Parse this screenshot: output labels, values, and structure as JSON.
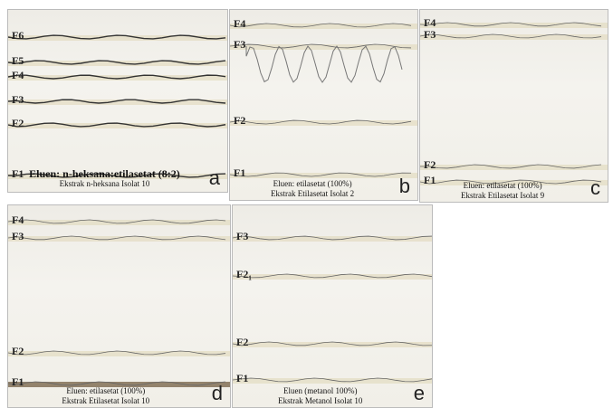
{
  "panels": [
    {
      "fractions": [
        "F6",
        "F5",
        "F4",
        "F3",
        "F2",
        "F1"
      ],
      "caption": [
        "Eluen: n-heksana:etilasetat (8:2)",
        "Ekstrak n-heksana Isolat 10"
      ],
      "letter": "a"
    },
    {
      "fractions": [
        "F4",
        "F3",
        "F2",
        "F1"
      ],
      "caption": [
        "Eluen: etilasetat (100%)",
        "Ekstrak Etilasetat Isolat 2"
      ],
      "letter": "b"
    },
    {
      "fractions": [
        "F4",
        "F3",
        "F2",
        "F1"
      ],
      "caption": [
        "Eluen: etilasetat (100%)",
        "Ekstrak Etilasetat Isolat 9"
      ],
      "letter": "c"
    },
    {
      "fractions": [
        "F4",
        "F3",
        "F2",
        "F1"
      ],
      "caption": [
        "Eluen: etilasetat (100%)",
        "Ekstrak Etilasetat Isolat 10"
      ],
      "letter": "d"
    },
    {
      "fractions": [
        "F3",
        "F2₁",
        "F2",
        "F1"
      ],
      "caption": [
        "Eluen (metanol 100%)",
        "Ekstrak Metanol Isolat 10"
      ],
      "letter": "e"
    }
  ]
}
